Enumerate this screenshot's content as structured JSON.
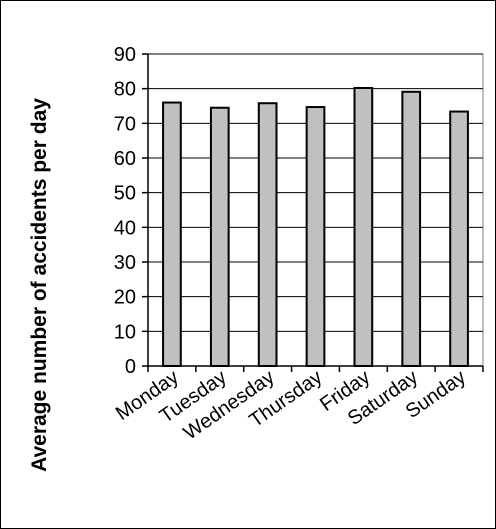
{
  "chart_data": {
    "type": "bar",
    "title": "",
    "xlabel": "",
    "ylabel": "Average number of accidents per day",
    "categories": [
      "Monday",
      "Tuesday",
      "Wednesday",
      "Thursday",
      "Friday",
      "Saturday",
      "Sunday"
    ],
    "values": [
      76,
      74.5,
      75.8,
      74.7,
      80.2,
      79.1,
      73.4
    ],
    "ylim": [
      0,
      90
    ],
    "yticks": [
      0,
      10,
      20,
      30,
      40,
      50,
      60,
      70,
      80,
      90
    ],
    "grid": true,
    "bar_color": "#c0c0c0",
    "bar_edge_color": "#000000",
    "legend": "none"
  }
}
